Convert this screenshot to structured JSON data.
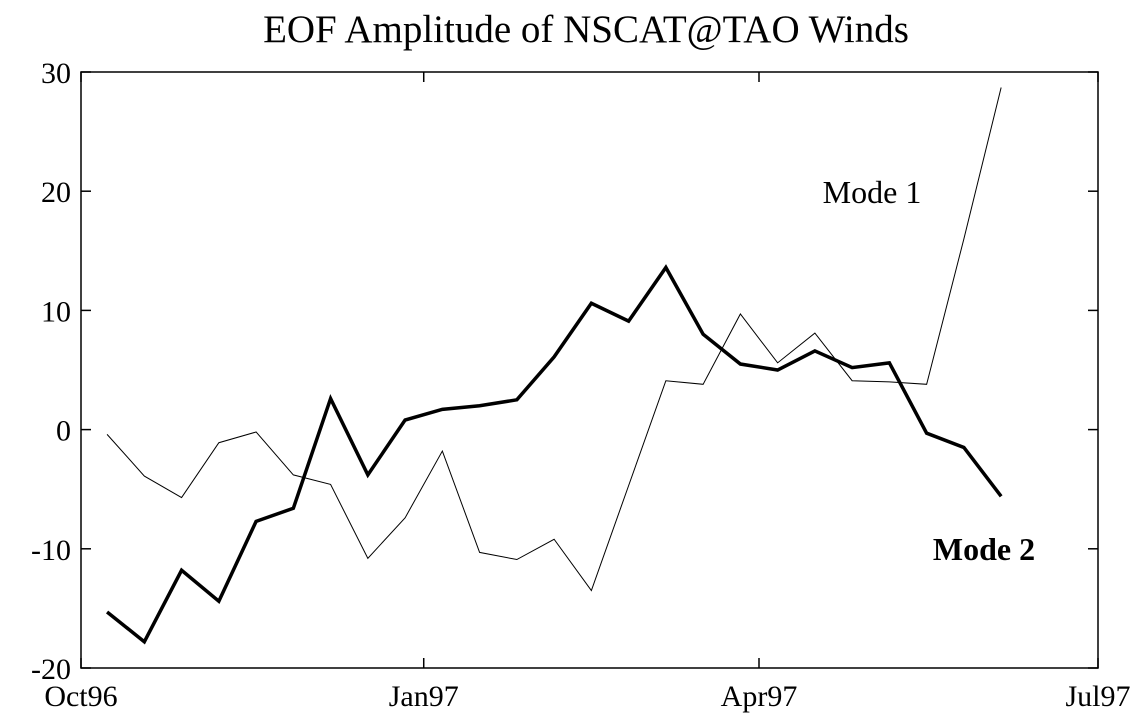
{
  "chart_data": {
    "type": "line",
    "title": "EOF Amplitude of NSCAT@TAO Winds",
    "x": [
      7,
      17,
      27,
      37,
      47,
      57,
      67,
      77,
      87,
      97,
      107,
      117,
      127,
      137,
      147,
      157,
      167,
      177,
      187,
      197,
      207,
      217,
      227,
      237,
      247
    ],
    "series": [
      {
        "name": "Mode 1",
        "color": "#000000",
        "width": 1,
        "values": [
          -0.4,
          -3.9,
          -5.7,
          -1.1,
          -0.2,
          -3.8,
          -4.6,
          -10.8,
          -7.4,
          -1.8,
          -10.3,
          -10.9,
          -9.2,
          -13.5,
          -4.7,
          4.1,
          3.8,
          9.7,
          5.6,
          8.1,
          4.1,
          4.0,
          3.8,
          16.0,
          28.7
        ]
      },
      {
        "name": "Mode 2",
        "color": "#000000",
        "width": 3.5,
        "values": [
          -15.3,
          -17.8,
          -11.8,
          -14.4,
          -7.7,
          -6.6,
          2.6,
          -3.8,
          0.8,
          1.7,
          2.0,
          2.5,
          6.1,
          10.6,
          9.1,
          13.6,
          8.0,
          5.5,
          5.0,
          6.6,
          5.2,
          5.6,
          -0.3,
          -1.5,
          -5.6
        ]
      }
    ],
    "xlim": [
      0,
      273
    ],
    "xticks": [
      {
        "value": 0,
        "label": "Oct96"
      },
      {
        "value": 92,
        "label": "Jan97"
      },
      {
        "value": 182,
        "label": "Apr97"
      },
      {
        "value": 273,
        "label": "Jul97"
      }
    ],
    "ylim": [
      -20,
      30
    ],
    "yticks": [
      -20,
      -10,
      0,
      10,
      20,
      30
    ]
  }
}
